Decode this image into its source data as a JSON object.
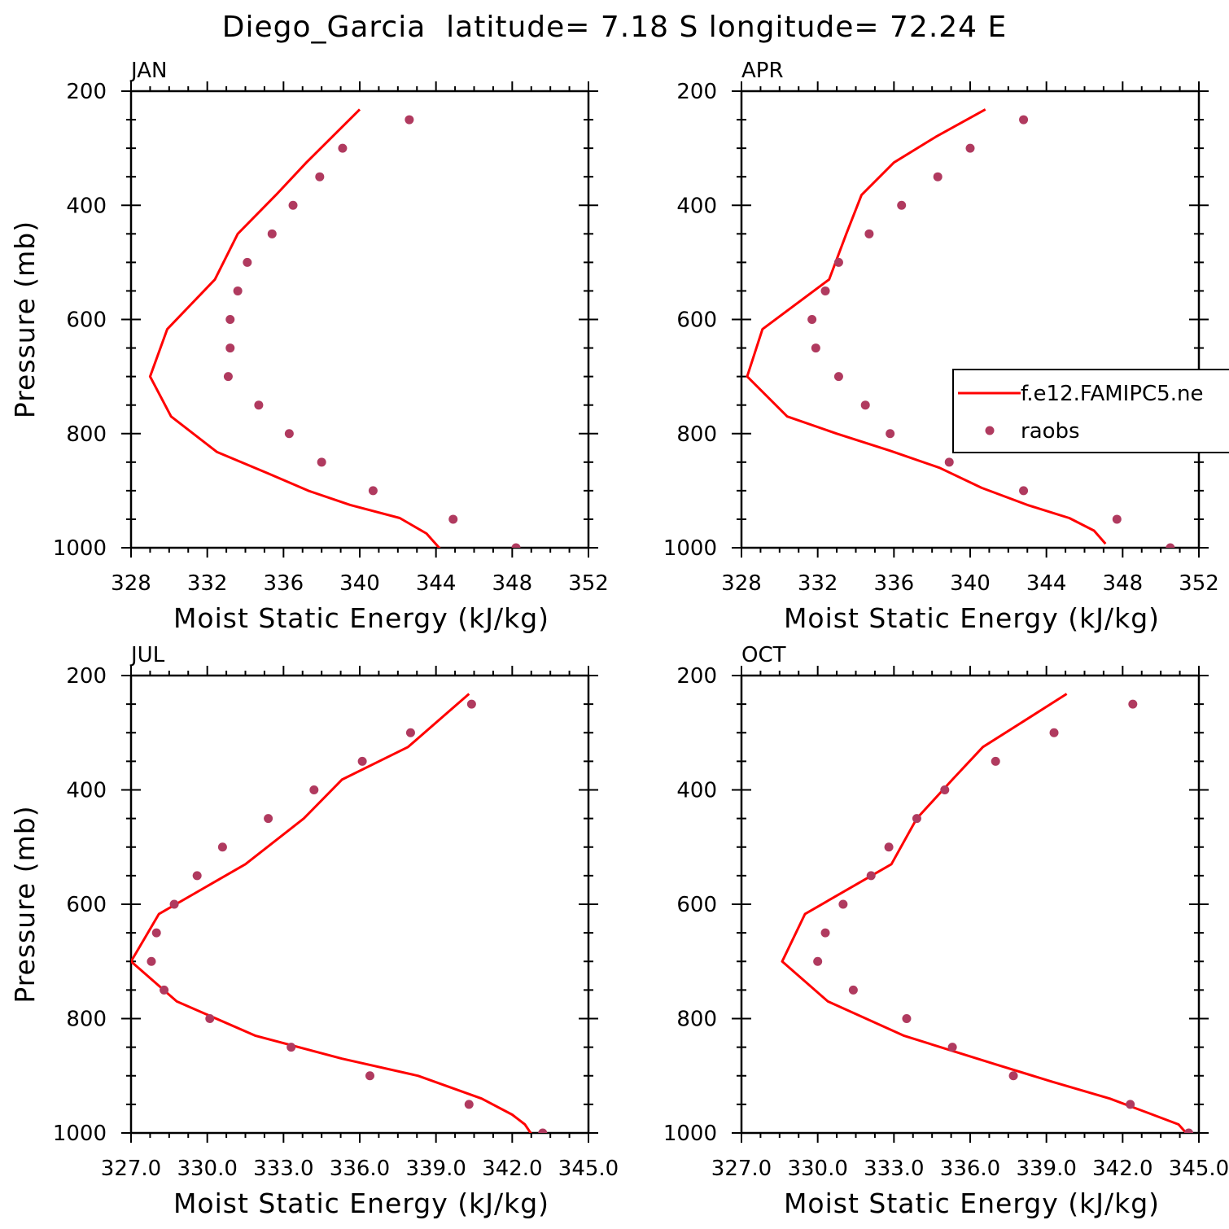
{
  "figure": {
    "title": "Diego_Garcia  latitude= 7.18 S longitude= 72.24 E"
  },
  "colors": {
    "model_line": "#ff0000",
    "obs_marker": "#b03a5f",
    "frame": "#000000"
  },
  "legend": {
    "model_label": "f.e12.FAMIPC5.ne",
    "obs_label": "raobs"
  },
  "chart_data": [
    {
      "type": "line",
      "panel": "JAN",
      "xlabel": "Moist Static Energy (kJ/kg)",
      "ylabel": "Pressure (mb)",
      "xlim": [
        328,
        352
      ],
      "ylim": [
        200,
        1000
      ],
      "xticks": [
        "328",
        "332",
        "336",
        "340",
        "344",
        "348",
        "352"
      ],
      "yticks": [
        "200",
        "400",
        "600",
        "800",
        "1000"
      ],
      "series": [
        {
          "name": "f.e12.FAMIPC5.ne",
          "kind": "line",
          "x": [
            340.0,
            337.2,
            335.6,
            333.6,
            332.4,
            329.9,
            329.0,
            330.1,
            332.5,
            335.2,
            337.3,
            339.5,
            342.1,
            343.5,
            344.3
          ],
          "y": [
            232,
            325,
            382,
            450,
            530,
            617,
            700,
            770,
            832,
            870,
            900,
            925,
            948,
            975,
            1005
          ]
        },
        {
          "name": "raobs",
          "kind": "scatter",
          "x": [
            342.6,
            339.1,
            337.9,
            336.5,
            335.4,
            334.1,
            333.6,
            333.2,
            333.2,
            333.1,
            334.7,
            336.3,
            338.0,
            340.7,
            344.9,
            348.2
          ],
          "y": [
            250,
            300,
            350,
            400,
            450,
            500,
            550,
            600,
            650,
            700,
            750,
            800,
            850,
            900,
            950,
            1000
          ]
        }
      ]
    },
    {
      "type": "line",
      "panel": "APR",
      "xlabel": "Moist Static Energy (kJ/kg)",
      "ylabel": "",
      "xlim": [
        328,
        352
      ],
      "ylim": [
        200,
        1000
      ],
      "xticks": [
        "328",
        "332",
        "336",
        "340",
        "344",
        "348",
        "352"
      ],
      "yticks": [
        "200",
        "400",
        "600",
        "800",
        "1000"
      ],
      "show_legend": true,
      "series": [
        {
          "name": "f.e12.FAMIPC5.ne",
          "kind": "line",
          "x": [
            340.8,
            338.2,
            336.0,
            334.3,
            333.5,
            332.6,
            329.1,
            328.3,
            330.4,
            333.0,
            335.8,
            338.4,
            340.6,
            343.0,
            345.2,
            346.5,
            347.1
          ],
          "y": [
            232,
            280,
            325,
            382,
            450,
            530,
            617,
            700,
            770,
            800,
            830,
            860,
            895,
            925,
            948,
            970,
            993
          ]
        },
        {
          "name": "raobs",
          "kind": "scatter",
          "x": [
            342.8,
            340.0,
            338.3,
            336.4,
            334.7,
            333.1,
            332.4,
            331.7,
            331.9,
            333.1,
            334.5,
            335.8,
            338.9,
            342.8,
            347.7,
            350.5
          ],
          "y": [
            250,
            300,
            350,
            400,
            450,
            500,
            550,
            600,
            650,
            700,
            750,
            800,
            850,
            900,
            950,
            1000
          ]
        }
      ]
    },
    {
      "type": "line",
      "panel": "JUL",
      "xlabel": "Moist Static Energy (kJ/kg)",
      "ylabel": "Pressure (mb)",
      "xlim": [
        327.0,
        345.0
      ],
      "ylim": [
        200,
        1000
      ],
      "xticks": [
        "327.0",
        "330.0",
        "333.0",
        "336.0",
        "339.0",
        "342.0",
        "345.0"
      ],
      "yticks": [
        "200",
        "400",
        "600",
        "800",
        "1000"
      ],
      "series": [
        {
          "name": "f.e12.FAMIPC5.ne",
          "kind": "line",
          "x": [
            340.3,
            337.9,
            335.3,
            333.8,
            331.5,
            328.1,
            327.0,
            328.8,
            331.9,
            335.3,
            338.3,
            340.8,
            342.0,
            342.5,
            342.8
          ],
          "y": [
            232,
            325,
            382,
            450,
            530,
            617,
            700,
            770,
            830,
            870,
            900,
            940,
            968,
            985,
            1005
          ]
        },
        {
          "name": "raobs",
          "kind": "scatter",
          "x": [
            340.4,
            338.0,
            336.1,
            334.2,
            332.4,
            330.6,
            329.6,
            328.7,
            328.0,
            327.8,
            328.3,
            330.1,
            333.3,
            336.4,
            340.3,
            343.2
          ],
          "y": [
            250,
            300,
            350,
            400,
            450,
            500,
            550,
            600,
            650,
            700,
            750,
            800,
            850,
            900,
            950,
            1000
          ]
        }
      ]
    },
    {
      "type": "line",
      "panel": "OCT",
      "xlabel": "Moist Static Energy (kJ/kg)",
      "ylabel": "",
      "xlim": [
        327.0,
        345.0
      ],
      "ylim": [
        200,
        1000
      ],
      "xticks": [
        "327.0",
        "330.0",
        "333.0",
        "336.0",
        "339.0",
        "342.0",
        "345.0"
      ],
      "yticks": [
        "200",
        "400",
        "600",
        "800",
        "1000"
      ],
      "series": [
        {
          "name": "f.e12.FAMIPC5.ne",
          "kind": "line",
          "x": [
            339.8,
            338.1,
            336.5,
            335.3,
            333.9,
            332.9,
            329.5,
            328.6,
            330.4,
            333.4,
            337.0,
            339.2,
            341.5,
            343.0,
            344.2,
            344.5
          ],
          "y": [
            232,
            280,
            325,
            382,
            450,
            530,
            617,
            700,
            770,
            830,
            880,
            910,
            940,
            965,
            985,
            1000
          ]
        },
        {
          "name": "raobs",
          "kind": "scatter",
          "x": [
            342.4,
            339.3,
            337.0,
            335.0,
            333.9,
            332.8,
            332.1,
            331.0,
            330.3,
            330.0,
            331.4,
            333.5,
            335.3,
            337.7,
            342.3,
            344.6
          ],
          "y": [
            250,
            300,
            350,
            400,
            450,
            500,
            550,
            600,
            650,
            700,
            750,
            800,
            850,
            900,
            950,
            1000
          ]
        }
      ]
    }
  ]
}
